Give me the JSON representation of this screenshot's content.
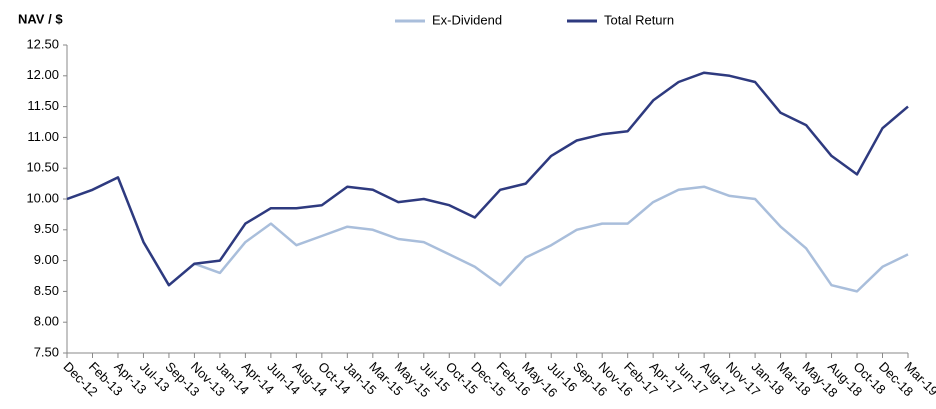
{
  "chart_data": {
    "type": "line",
    "y_label": "NAV / $",
    "categories": [
      "Dec-12",
      "Feb-13",
      "Apr-13",
      "Jul-13",
      "Sep-13",
      "Nov-13",
      "Jan-14",
      "Apr-14",
      "Jun-14",
      "Aug-14",
      "Oct-14",
      "Jan-15",
      "Mar-15",
      "May-15",
      "Jul-15",
      "Oct-15",
      "Dec-15",
      "Feb-16",
      "May-16",
      "Jul-16",
      "Sep-16",
      "Nov-16",
      "Feb-17",
      "Apr-17",
      "Jun-17",
      "Aug-17",
      "Nov-17",
      "Jan-18",
      "Mar-18",
      "May-18",
      "Aug-18",
      "Oct-18",
      "Dec-18",
      "Mar-19"
    ],
    "series": [
      {
        "name": "Ex-Dividend",
        "color": "#a9bedb",
        "values": [
          10.0,
          10.15,
          10.35,
          9.3,
          8.6,
          8.95,
          8.8,
          9.3,
          9.6,
          9.25,
          9.4,
          9.55,
          9.5,
          9.35,
          9.3,
          9.1,
          8.9,
          8.6,
          9.05,
          9.25,
          9.5,
          9.6,
          9.6,
          9.95,
          10.15,
          10.2,
          10.05,
          10.0,
          9.55,
          9.2,
          8.6,
          8.5,
          8.9,
          9.1
        ]
      },
      {
        "name": "Total Return",
        "color": "#2e3a7f",
        "values": [
          10.0,
          10.15,
          10.35,
          9.3,
          8.6,
          8.95,
          9.0,
          9.6,
          9.85,
          9.85,
          9.9,
          10.2,
          10.15,
          9.95,
          10.0,
          9.9,
          9.7,
          10.15,
          10.25,
          10.7,
          10.95,
          11.05,
          11.1,
          11.6,
          11.9,
          12.05,
          12.0,
          11.9,
          11.4,
          11.2,
          10.7,
          10.4,
          11.15,
          11.5
        ]
      }
    ],
    "ylim": [
      7.5,
      12.5
    ],
    "yticks": [
      {
        "value": 7.5,
        "label": "7.50"
      },
      {
        "value": 8,
        "label": "8.00"
      },
      {
        "value": 8.5,
        "label": "8.50"
      },
      {
        "value": 9,
        "label": "9.00"
      },
      {
        "value": 9.5,
        "label": "9.50"
      },
      {
        "value": 10,
        "label": "10.00"
      },
      {
        "value": 10.5,
        "label": "10.50"
      },
      {
        "value": 11,
        "label": "11.00"
      },
      {
        "value": 11.5,
        "label": "11.50"
      },
      {
        "value": 12,
        "label": "12.00"
      },
      {
        "value": 12.5,
        "label": "12.50"
      }
    ],
    "grid": false,
    "legend": "top"
  }
}
